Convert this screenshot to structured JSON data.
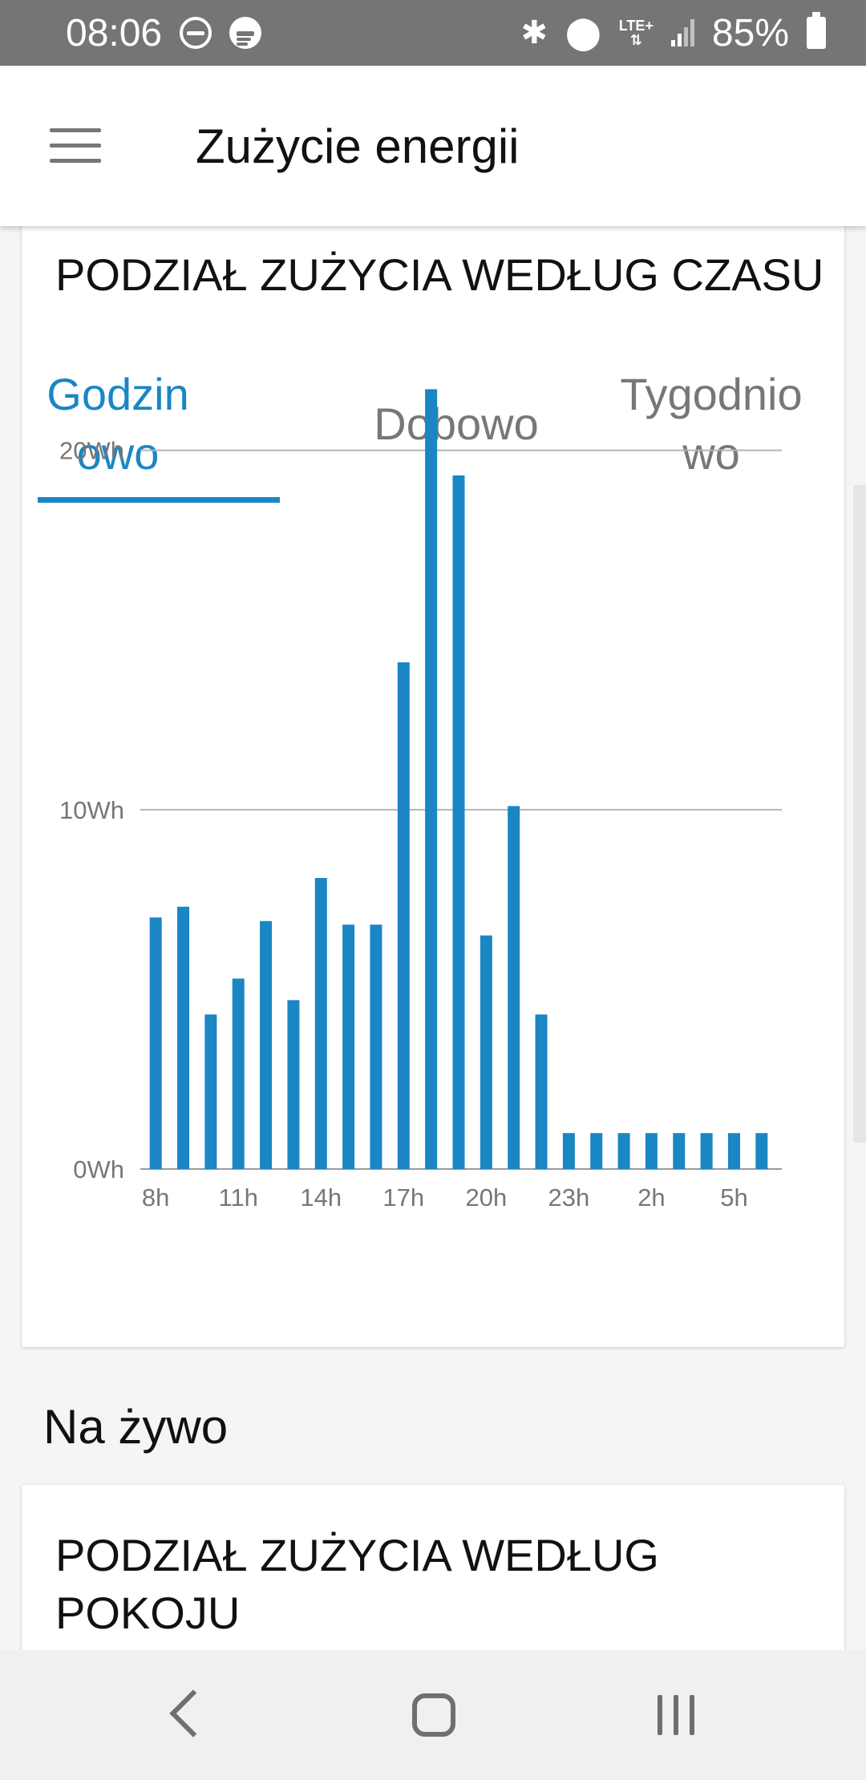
{
  "status_bar": {
    "time": "08:06",
    "network": "LTE+",
    "battery": "85%",
    "icons": [
      "dnd-icon",
      "spotify-icon",
      "bluetooth-icon",
      "location-icon",
      "lte-icon",
      "signal-icon",
      "battery-icon"
    ]
  },
  "app_bar": {
    "title": "Zużycie energii",
    "menu_icon": "hamburger-menu-icon"
  },
  "time_card": {
    "title": "PODZIAŁ ZUŻYCIA WEDŁUG CZASU",
    "tabs": [
      {
        "label": "Godzinowo",
        "active": true
      },
      {
        "label": "Dobowo",
        "active": false
      },
      {
        "label": "Tygodniowo",
        "active": false
      }
    ]
  },
  "chart_data": {
    "type": "bar",
    "categories": [
      "8h",
      "9h",
      "10h",
      "11h",
      "12h",
      "13h",
      "14h",
      "15h",
      "16h",
      "17h",
      "18h",
      "19h",
      "20h",
      "21h",
      "22h",
      "23h",
      "0h",
      "1h",
      "2h",
      "3h",
      "4h",
      "5h",
      "6h"
    ],
    "values": [
      7.0,
      7.3,
      4.3,
      5.3,
      6.9,
      4.7,
      8.1,
      6.8,
      6.8,
      14.1,
      21.7,
      19.3,
      6.5,
      10.1,
      4.3,
      1.0,
      1.0,
      1.0,
      1.0,
      1.0,
      1.0,
      1.0,
      1.0
    ],
    "x_tick_labels": [
      "8h",
      "11h",
      "14h",
      "17h",
      "20h",
      "23h",
      "2h",
      "5h"
    ],
    "y_tick_labels": [
      "0Wh",
      "10Wh",
      "20Wh"
    ],
    "ylim": [
      0,
      22
    ],
    "y_unit": "Wh",
    "grid": true,
    "color": "#1a86c4"
  },
  "live_section": {
    "heading": "Na żywo"
  },
  "room_card": {
    "title": "PODZIAŁ ZUŻYCIA WEDŁUG POKOJU"
  },
  "colors": {
    "accent": "#1a86c4",
    "status_bar": "#757575",
    "background": "#f3f5f6"
  }
}
